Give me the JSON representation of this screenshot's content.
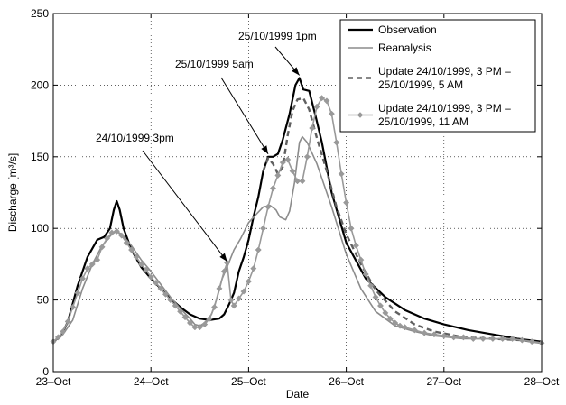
{
  "chart_data": {
    "type": "line",
    "xlabel": "Date",
    "ylabel": "Discharge [m³/s]",
    "xlim": [
      0,
      5
    ],
    "ylim": [
      0,
      250
    ],
    "grid": true,
    "legend_position": "top-right",
    "x_ticks": [
      {
        "x": 0,
        "label": "23–Oct"
      },
      {
        "x": 1,
        "label": "24–Oct"
      },
      {
        "x": 2,
        "label": "25–Oct"
      },
      {
        "x": 3,
        "label": "26–Oct"
      },
      {
        "x": 4,
        "label": "27–Oct"
      },
      {
        "x": 5,
        "label": "28–Oct"
      }
    ],
    "y_ticks": [
      {
        "y": 0,
        "label": "0"
      },
      {
        "y": 50,
        "label": "50"
      },
      {
        "y": 100,
        "label": "100"
      },
      {
        "y": 150,
        "label": "150"
      },
      {
        "y": 200,
        "label": "200"
      },
      {
        "y": 250,
        "label": "250"
      }
    ],
    "series": [
      {
        "name": "Observation",
        "color": "#000000",
        "style": "solid-thick",
        "points": [
          [
            0,
            21
          ],
          [
            0.08,
            25
          ],
          [
            0.15,
            35
          ],
          [
            0.25,
            60
          ],
          [
            0.35,
            80
          ],
          [
            0.45,
            92
          ],
          [
            0.52,
            94
          ],
          [
            0.58,
            100
          ],
          [
            0.62,
            113
          ],
          [
            0.65,
            119
          ],
          [
            0.68,
            113
          ],
          [
            0.72,
            100
          ],
          [
            0.8,
            85
          ],
          [
            0.9,
            73
          ],
          [
            1.0,
            65
          ],
          [
            1.1,
            58
          ],
          [
            1.2,
            51
          ],
          [
            1.3,
            45
          ],
          [
            1.4,
            40
          ],
          [
            1.5,
            37
          ],
          [
            1.6,
            36
          ],
          [
            1.7,
            37
          ],
          [
            1.75,
            40
          ],
          [
            1.8,
            47
          ],
          [
            1.85,
            55
          ],
          [
            1.9,
            70
          ],
          [
            1.95,
            80
          ],
          [
            2.0,
            92
          ],
          [
            2.05,
            108
          ],
          [
            2.1,
            122
          ],
          [
            2.15,
            140
          ],
          [
            2.2,
            150
          ],
          [
            2.25,
            150
          ],
          [
            2.3,
            152
          ],
          [
            2.35,
            162
          ],
          [
            2.42,
            180
          ],
          [
            2.48,
            200
          ],
          [
            2.52,
            205
          ],
          [
            2.56,
            197
          ],
          [
            2.62,
            196
          ],
          [
            2.68,
            180
          ],
          [
            2.75,
            160
          ],
          [
            2.85,
            125
          ],
          [
            3.0,
            90
          ],
          [
            3.2,
            65
          ],
          [
            3.4,
            52
          ],
          [
            3.6,
            43
          ],
          [
            3.8,
            37
          ],
          [
            4.0,
            33
          ],
          [
            4.25,
            29
          ],
          [
            4.5,
            26
          ],
          [
            4.75,
            23
          ],
          [
            5.0,
            21
          ]
        ]
      },
      {
        "name": "Reanalysis",
        "color": "#8c8c8c",
        "style": "solid",
        "points": [
          [
            0,
            21
          ],
          [
            0.1,
            26
          ],
          [
            0.2,
            36
          ],
          [
            0.3,
            58
          ],
          [
            0.4,
            75
          ],
          [
            0.5,
            88
          ],
          [
            0.6,
            96
          ],
          [
            0.65,
            98
          ],
          [
            0.7,
            96
          ],
          [
            0.8,
            88
          ],
          [
            0.9,
            78
          ],
          [
            1.0,
            70
          ],
          [
            1.1,
            61
          ],
          [
            1.2,
            52
          ],
          [
            1.3,
            44
          ],
          [
            1.4,
            37
          ],
          [
            1.45,
            33
          ],
          [
            1.5,
            32
          ],
          [
            1.55,
            34
          ],
          [
            1.62,
            40
          ],
          [
            1.68,
            52
          ],
          [
            1.73,
            65
          ],
          [
            1.78,
            73
          ],
          [
            1.85,
            85
          ],
          [
            1.92,
            93
          ],
          [
            2.0,
            104
          ],
          [
            2.08,
            110
          ],
          [
            2.15,
            115
          ],
          [
            2.22,
            116
          ],
          [
            2.28,
            113
          ],
          [
            2.32,
            108
          ],
          [
            2.38,
            106
          ],
          [
            2.42,
            112
          ],
          [
            2.47,
            132
          ],
          [
            2.52,
            160
          ],
          [
            2.55,
            164
          ],
          [
            2.6,
            160
          ],
          [
            2.7,
            145
          ],
          [
            2.85,
            115
          ],
          [
            3.0,
            82
          ],
          [
            3.15,
            58
          ],
          [
            3.3,
            42
          ],
          [
            3.5,
            32
          ],
          [
            3.7,
            28
          ],
          [
            3.9,
            25
          ],
          [
            4.2,
            23
          ],
          [
            4.5,
            23
          ],
          [
            4.8,
            22
          ],
          [
            5.0,
            20
          ]
        ]
      },
      {
        "name": "Update 24/10/1999, 3 PM – 25/10/1999, 5 AM",
        "color": "#606060",
        "style": "dashed-thick",
        "points": [
          [
            2.15,
            140
          ],
          [
            2.2,
            149
          ],
          [
            2.25,
            145
          ],
          [
            2.3,
            138
          ],
          [
            2.35,
            143
          ],
          [
            2.4,
            165
          ],
          [
            2.45,
            182
          ],
          [
            2.5,
            190
          ],
          [
            2.56,
            191
          ],
          [
            2.62,
            183
          ],
          [
            2.7,
            163
          ],
          [
            2.8,
            140
          ],
          [
            2.9,
            115
          ],
          [
            3.0,
            96
          ],
          [
            3.15,
            75
          ],
          [
            3.3,
            57
          ],
          [
            3.5,
            42
          ],
          [
            3.7,
            33
          ],
          [
            3.9,
            28
          ],
          [
            4.2,
            24
          ],
          [
            4.5,
            23
          ],
          [
            4.8,
            22
          ],
          [
            5.0,
            20
          ]
        ]
      },
      {
        "name": "Update 24/10/1999, 3 PM – 25/10/1999, 11 AM",
        "color": "#999999",
        "style": "solid-diamond",
        "points": [
          [
            0,
            21
          ],
          [
            0.05,
            24
          ],
          [
            0.1,
            28
          ],
          [
            0.15,
            35
          ],
          [
            0.2,
            45
          ],
          [
            0.25,
            55
          ],
          [
            0.3,
            65
          ],
          [
            0.35,
            72
          ],
          [
            0.4,
            75
          ],
          [
            0.45,
            78
          ],
          [
            0.5,
            87
          ],
          [
            0.55,
            93
          ],
          [
            0.6,
            97
          ],
          [
            0.65,
            98
          ],
          [
            0.7,
            95
          ],
          [
            0.75,
            90
          ],
          [
            0.8,
            85
          ],
          [
            0.85,
            80
          ],
          [
            0.9,
            75
          ],
          [
            0.95,
            71
          ],
          [
            1.0,
            66
          ],
          [
            1.05,
            62
          ],
          [
            1.1,
            58
          ],
          [
            1.15,
            54
          ],
          [
            1.2,
            50
          ],
          [
            1.25,
            46
          ],
          [
            1.3,
            42
          ],
          [
            1.35,
            38
          ],
          [
            1.4,
            34
          ],
          [
            1.45,
            31
          ],
          [
            1.5,
            31
          ],
          [
            1.55,
            33
          ],
          [
            1.6,
            37
          ],
          [
            1.65,
            45
          ],
          [
            1.7,
            58
          ],
          [
            1.75,
            70
          ],
          [
            1.78,
            76
          ],
          [
            1.82,
            50
          ],
          [
            1.85,
            46
          ],
          [
            1.9,
            51
          ],
          [
            1.95,
            56
          ],
          [
            2.0,
            63
          ],
          [
            2.05,
            72
          ],
          [
            2.1,
            85
          ],
          [
            2.15,
            100
          ],
          [
            2.2,
            115
          ],
          [
            2.25,
            128
          ],
          [
            2.3,
            137
          ],
          [
            2.35,
            146
          ],
          [
            2.4,
            148
          ],
          [
            2.45,
            140
          ],
          [
            2.5,
            133
          ],
          [
            2.55,
            133
          ],
          [
            2.6,
            150
          ],
          [
            2.65,
            170
          ],
          [
            2.7,
            185
          ],
          [
            2.75,
            191
          ],
          [
            2.8,
            189
          ],
          [
            2.85,
            180
          ],
          [
            2.9,
            160
          ],
          [
            2.95,
            138
          ],
          [
            3.0,
            118
          ],
          [
            3.05,
            100
          ],
          [
            3.1,
            88
          ],
          [
            3.15,
            78
          ],
          [
            3.2,
            68
          ],
          [
            3.25,
            60
          ],
          [
            3.3,
            52
          ],
          [
            3.35,
            46
          ],
          [
            3.4,
            41
          ],
          [
            3.45,
            37
          ],
          [
            3.5,
            34
          ],
          [
            3.55,
            32
          ],
          [
            3.6,
            31
          ],
          [
            3.7,
            29
          ],
          [
            3.8,
            27
          ],
          [
            3.9,
            26
          ],
          [
            4.0,
            25
          ],
          [
            4.1,
            24
          ],
          [
            4.2,
            24
          ],
          [
            4.3,
            23
          ],
          [
            4.4,
            23
          ],
          [
            4.5,
            23
          ],
          [
            4.6,
            23
          ],
          [
            4.7,
            23
          ],
          [
            4.8,
            22
          ],
          [
            4.9,
            21
          ],
          [
            5.0,
            20
          ]
        ]
      }
    ],
    "annotations": [
      {
        "text": "24/10/1999 3pm",
        "target": [
          1.78,
          75
        ]
      },
      {
        "text": "25/10/1999 5am",
        "target": [
          2.2,
          150
        ]
      },
      {
        "text": "25/10/1999 1pm",
        "target": [
          2.52,
          205
        ]
      }
    ],
    "legend_entries": [
      {
        "lines": [
          "Observation"
        ],
        "series": 0
      },
      {
        "lines": [
          "Reanalysis"
        ],
        "series": 1
      },
      {
        "lines": [
          "Update 24/10/1999, 3 PM –",
          "25/10/1999, 5 AM"
        ],
        "series": 2
      },
      {
        "lines": [
          "Update 24/10/1999, 3 PM –",
          "25/10/1999, 11 AM"
        ],
        "series": 3
      }
    ]
  }
}
